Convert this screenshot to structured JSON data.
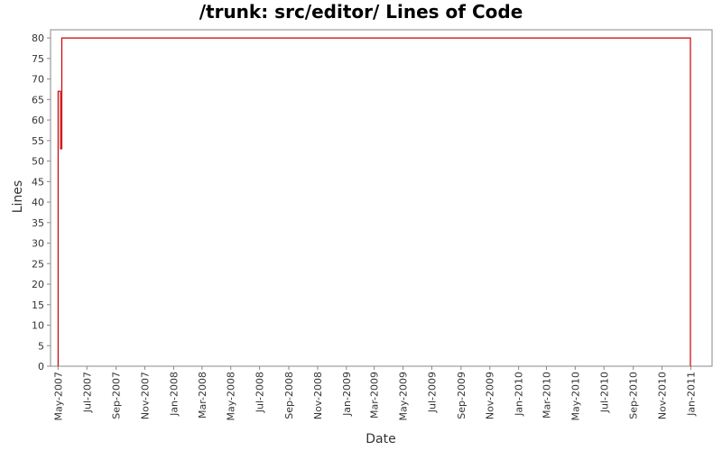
{
  "chart_data": {
    "type": "line",
    "title": "/trunk: src/editor/ Lines of Code",
    "xlabel": "Date",
    "ylabel": "Lines",
    "ylim": [
      0,
      82
    ],
    "yticks": [
      0,
      5,
      10,
      15,
      20,
      25,
      30,
      35,
      40,
      45,
      50,
      55,
      60,
      65,
      70,
      75,
      80
    ],
    "xlim": [
      "2007-04-15",
      "2011-02-15"
    ],
    "xticks": [
      {
        "date": "2007-05-01",
        "label": "May-2007"
      },
      {
        "date": "2007-07-01",
        "label": "Jul-2007"
      },
      {
        "date": "2007-09-01",
        "label": "Sep-2007"
      },
      {
        "date": "2007-11-01",
        "label": "Nov-2007"
      },
      {
        "date": "2008-01-01",
        "label": "Jan-2008"
      },
      {
        "date": "2008-03-01",
        "label": "Mar-2008"
      },
      {
        "date": "2008-05-01",
        "label": "May-2008"
      },
      {
        "date": "2008-07-01",
        "label": "Jul-2008"
      },
      {
        "date": "2008-09-01",
        "label": "Sep-2008"
      },
      {
        "date": "2008-11-01",
        "label": "Nov-2008"
      },
      {
        "date": "2009-01-01",
        "label": "Jan-2009"
      },
      {
        "date": "2009-03-01",
        "label": "Mar-2009"
      },
      {
        "date": "2009-05-01",
        "label": "May-2009"
      },
      {
        "date": "2009-07-01",
        "label": "Jul-2009"
      },
      {
        "date": "2009-09-01",
        "label": "Sep-2009"
      },
      {
        "date": "2009-11-01",
        "label": "Nov-2009"
      },
      {
        "date": "2010-01-01",
        "label": "Jan-2010"
      },
      {
        "date": "2010-03-01",
        "label": "Mar-2010"
      },
      {
        "date": "2010-05-01",
        "label": "May-2010"
      },
      {
        "date": "2010-07-01",
        "label": "Jul-2010"
      },
      {
        "date": "2010-09-01",
        "label": "Sep-2010"
      },
      {
        "date": "2010-11-01",
        "label": "Nov-2010"
      },
      {
        "date": "2011-01-01",
        "label": "Jan-2011"
      }
    ],
    "series": [
      {
        "color": "#cc0000",
        "step": true,
        "points": [
          {
            "x": "2007-05-01",
            "y": 0
          },
          {
            "x": "2007-05-01",
            "y": 67
          },
          {
            "x": "2007-05-06",
            "y": 67
          },
          {
            "x": "2007-05-06",
            "y": 53
          },
          {
            "x": "2007-05-09",
            "y": 53
          },
          {
            "x": "2007-05-09",
            "y": 80
          },
          {
            "x": "2010-12-31",
            "y": 80
          },
          {
            "x": "2010-12-31",
            "y": 0
          }
        ]
      }
    ],
    "grid": false,
    "legend": "none",
    "colors": {
      "plot_border": "#888888",
      "tick_color": "#888888",
      "text": "#333333"
    }
  }
}
